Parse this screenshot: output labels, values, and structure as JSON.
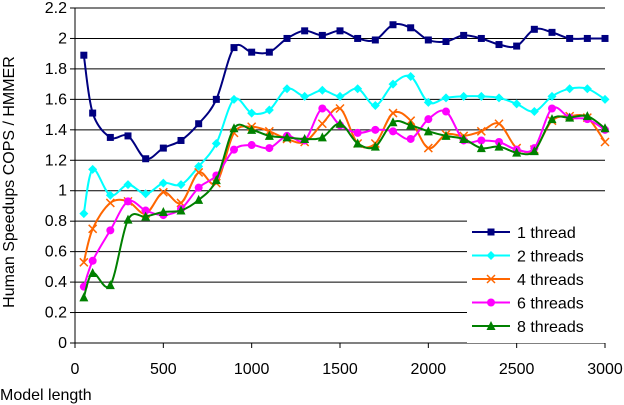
{
  "chart_data": {
    "type": "line",
    "xlabel": "Model  length",
    "ylabel": "Human  Speedups  COPS / HMMER",
    "xlim": [
      0,
      3000
    ],
    "ylim": [
      0,
      2.2
    ],
    "x_ticks": [
      "0",
      "500",
      "1000",
      "1500",
      "2000",
      "2500",
      "3000"
    ],
    "y_ticks": [
      "0",
      "0.2",
      "0.4",
      "0.6",
      "0.8",
      "1",
      "1.2",
      "1.4",
      "1.6",
      "1.8",
      "2",
      "2.2"
    ],
    "grid": "horizontal",
    "legend_position": "bottom-right",
    "x": [
      50,
      100,
      200,
      300,
      400,
      500,
      600,
      700,
      800,
      900,
      1000,
      1100,
      1200,
      1300,
      1400,
      1500,
      1600,
      1700,
      1800,
      1900,
      2000,
      2100,
      2200,
      2300,
      2400,
      2500,
      2600,
      2700,
      2800,
      2900,
      3000
    ],
    "series": [
      {
        "name": "1 thread",
        "color": "#000080",
        "marker": "square",
        "values": [
          1.89,
          1.51,
          1.35,
          1.36,
          1.21,
          1.28,
          1.33,
          1.44,
          1.6,
          1.94,
          1.91,
          1.91,
          2.0,
          2.05,
          2.02,
          2.05,
          2.0,
          1.99,
          2.09,
          2.07,
          1.99,
          1.98,
          2.02,
          2.0,
          1.96,
          1.95,
          2.06,
          2.04,
          2.0,
          2.0,
          2.0
        ]
      },
      {
        "name": "2 threads",
        "color": "#00FFFF",
        "marker": "diamond",
        "values": [
          0.85,
          1.14,
          0.97,
          1.04,
          0.98,
          1.05,
          1.04,
          1.16,
          1.31,
          1.6,
          1.51,
          1.53,
          1.67,
          1.62,
          1.66,
          1.62,
          1.67,
          1.56,
          1.7,
          1.75,
          1.58,
          1.61,
          1.62,
          1.62,
          1.61,
          1.57,
          1.52,
          1.62,
          1.67,
          1.67,
          1.6
        ]
      },
      {
        "name": "4 threads",
        "color": "#FF6600",
        "marker": "x",
        "values": [
          0.53,
          0.75,
          0.92,
          0.93,
          0.85,
          0.99,
          0.92,
          1.12,
          1.05,
          1.38,
          1.42,
          1.39,
          1.34,
          1.32,
          1.44,
          1.54,
          1.31,
          1.31,
          1.51,
          1.46,
          1.28,
          1.37,
          1.36,
          1.39,
          1.44,
          1.28,
          1.27,
          1.46,
          1.49,
          1.48,
          1.32
        ]
      },
      {
        "name": "6 threads",
        "color": "#FF00FF",
        "marker": "circle",
        "values": [
          0.37,
          0.54,
          0.74,
          0.93,
          0.87,
          0.84,
          0.88,
          1.02,
          1.1,
          1.27,
          1.3,
          1.28,
          1.36,
          1.33,
          1.54,
          1.43,
          1.38,
          1.4,
          1.39,
          1.34,
          1.47,
          1.52,
          1.33,
          1.33,
          1.32,
          1.27,
          1.28,
          1.54,
          1.48,
          1.47,
          1.4
        ]
      },
      {
        "name": "8 threads",
        "color": "#008000",
        "marker": "triangle",
        "values": [
          0.3,
          0.46,
          0.38,
          0.81,
          0.83,
          0.86,
          0.87,
          0.94,
          1.07,
          1.41,
          1.4,
          1.36,
          1.35,
          1.34,
          1.35,
          1.44,
          1.31,
          1.29,
          1.45,
          1.43,
          1.39,
          1.36,
          1.34,
          1.28,
          1.29,
          1.25,
          1.26,
          1.47,
          1.48,
          1.49,
          1.41
        ]
      }
    ]
  }
}
